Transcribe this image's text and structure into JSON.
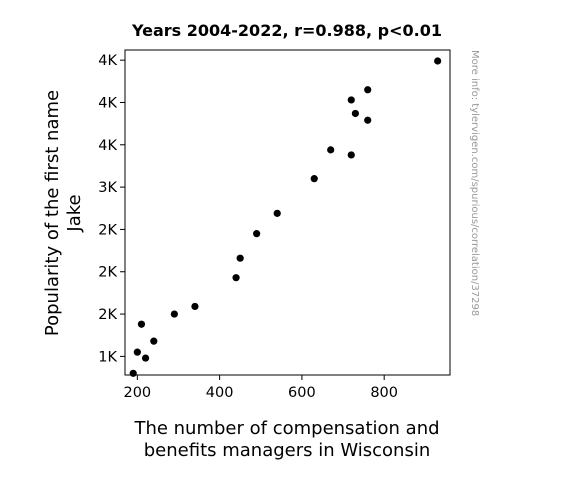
{
  "chart_data": {
    "type": "scatter",
    "title": "Years 2004-2022, r=0.988, p<0.01",
    "xlabel_lines": [
      "The number of compensation and",
      "benefits managers in Wisconsin"
    ],
    "ylabel_lines": [
      "Popularity of the first name",
      "Jake"
    ],
    "xlim": [
      170,
      960
    ],
    "ylim": [
      780,
      4620
    ],
    "x_ticks": [
      {
        "value": 200,
        "label": "200"
      },
      {
        "value": 400,
        "label": "400"
      },
      {
        "value": 600,
        "label": "600"
      },
      {
        "value": 800,
        "label": "800"
      }
    ],
    "y_ticks": [
      {
        "value": 1000,
        "label": "1K"
      },
      {
        "value": 1500,
        "label": "2K"
      },
      {
        "value": 2000,
        "label": "2K"
      },
      {
        "value": 2500,
        "label": "2K"
      },
      {
        "value": 3000,
        "label": "3K"
      },
      {
        "value": 3500,
        "label": "4K"
      },
      {
        "value": 4000,
        "label": "4K"
      },
      {
        "value": 4500,
        "label": "4K"
      }
    ],
    "points": [
      {
        "x": 190,
        "y": 800
      },
      {
        "x": 200,
        "y": 1050
      },
      {
        "x": 220,
        "y": 980
      },
      {
        "x": 210,
        "y": 1380
      },
      {
        "x": 240,
        "y": 1180
      },
      {
        "x": 290,
        "y": 1500
      },
      {
        "x": 340,
        "y": 1590
      },
      {
        "x": 440,
        "y": 1930
      },
      {
        "x": 450,
        "y": 2160
      },
      {
        "x": 490,
        "y": 2450
      },
      {
        "x": 540,
        "y": 2690
      },
      {
        "x": 630,
        "y": 3100
      },
      {
        "x": 670,
        "y": 3440
      },
      {
        "x": 720,
        "y": 3380
      },
      {
        "x": 720,
        "y": 4030
      },
      {
        "x": 730,
        "y": 3870
      },
      {
        "x": 760,
        "y": 4150
      },
      {
        "x": 760,
        "y": 3790
      },
      {
        "x": 930,
        "y": 4490
      }
    ],
    "point_color": "#000000",
    "grid": false,
    "legend": "none"
  },
  "watermark": "More info: tylervigen.com/spurious/correlation/37298"
}
